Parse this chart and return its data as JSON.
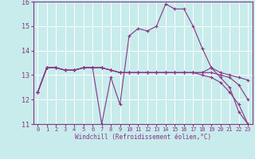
{
  "xlabel": "Windchill (Refroidissement éolien,°C)",
  "background_color": "#c8ecec",
  "line_color": "#883388",
  "grid_color": "#aadddd",
  "xlim": [
    -0.5,
    23.5
  ],
  "ylim": [
    11,
    16
  ],
  "yticks": [
    11,
    12,
    13,
    14,
    15,
    16
  ],
  "xticks": [
    0,
    1,
    2,
    3,
    4,
    5,
    6,
    7,
    8,
    9,
    10,
    11,
    12,
    13,
    14,
    15,
    16,
    17,
    18,
    19,
    20,
    21,
    22,
    23
  ],
  "series": [
    [
      12.3,
      13.3,
      13.3,
      13.2,
      13.2,
      13.3,
      13.3,
      11.0,
      12.9,
      11.8,
      14.6,
      14.9,
      14.8,
      15.0,
      15.9,
      15.7,
      15.7,
      15.0,
      14.1,
      13.3,
      12.9,
      12.5,
      11.5,
      11.0
    ],
    [
      12.3,
      13.3,
      13.3,
      13.2,
      13.2,
      13.3,
      13.3,
      13.3,
      13.2,
      13.1,
      13.1,
      13.1,
      13.1,
      13.1,
      13.1,
      13.1,
      13.1,
      13.1,
      13.1,
      13.3,
      13.1,
      13.0,
      12.9,
      12.8
    ],
    [
      12.3,
      13.3,
      13.3,
      13.2,
      13.2,
      13.3,
      13.3,
      13.3,
      13.2,
      13.1,
      13.1,
      13.1,
      13.1,
      13.1,
      13.1,
      13.1,
      13.1,
      13.1,
      13.1,
      13.1,
      13.0,
      12.9,
      12.6,
      12.0
    ],
    [
      12.3,
      13.3,
      13.3,
      13.2,
      13.2,
      13.3,
      13.3,
      13.3,
      13.2,
      13.1,
      13.1,
      13.1,
      13.1,
      13.1,
      13.1,
      13.1,
      13.1,
      13.1,
      13.0,
      12.9,
      12.7,
      12.3,
      11.8,
      11.0
    ]
  ]
}
